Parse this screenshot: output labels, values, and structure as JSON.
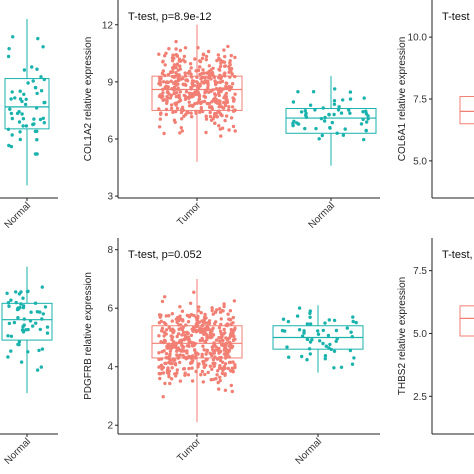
{
  "chart_data": [
    {
      "type": "box",
      "cut": "left",
      "categories": [
        "Tumor",
        "Normal"
      ],
      "tick_labels": [
        "",
        "Normal"
      ],
      "series": [
        {
          "name": "Tumor",
          "median": 6.9,
          "q1": 6.2,
          "q3": 7.8,
          "whisker_low": 4.4,
          "whisker_high": 9.7,
          "color": "#f27f74"
        },
        {
          "name": "Normal",
          "median": 6.9,
          "q1": 6.2,
          "q3": 7.8,
          "whisker_low": 4.4,
          "whisker_high": 9.7,
          "color": "#19b2ad"
        }
      ],
      "ylim": [
        4.0,
        10.3
      ]
    },
    {
      "type": "box",
      "title": "T-test, p=8.9e-12",
      "ylabel": "COL1A2 relative expression",
      "categories": [
        "Tumor",
        "Normal"
      ],
      "tick_labels": [
        "Tumor",
        "Normal"
      ],
      "yticks": [
        3,
        6,
        9,
        12
      ],
      "ylim": [
        2.9,
        13.3
      ],
      "series": [
        {
          "name": "Tumor",
          "median": 8.6,
          "q1": 7.5,
          "q3": 9.3,
          "whisker_low": 4.8,
          "whisker_high": 12.0,
          "color": "#f27f74"
        },
        {
          "name": "Normal",
          "median": 7.1,
          "q1": 6.3,
          "q3": 7.6,
          "whisker_low": 4.6,
          "whisker_high": 9.3,
          "color": "#19b2ad"
        }
      ]
    },
    {
      "type": "box",
      "cut": "right",
      "title": "T-test",
      "ylabel": "COL6A1 relative expression",
      "categories": [
        "Tumor"
      ],
      "tick_labels": [],
      "yticks": [
        5.0,
        7.5,
        10.0
      ],
      "ylim": [
        3.5,
        11.5
      ],
      "series": [
        {
          "name": "Tumor",
          "median": 7.0,
          "q1": 6.5,
          "q3": 7.6,
          "whisker_low": 4.0,
          "whisker_high": 10.0,
          "color": "#f27f74"
        }
      ]
    },
    {
      "type": "box",
      "cut": "left",
      "categories": [
        "Tumor",
        "Normal"
      ],
      "tick_labels": [
        "",
        "Normal"
      ],
      "series": [
        {
          "name": "Tumor",
          "median": 4.8,
          "q1": 4.3,
          "q3": 5.2,
          "whisker_low": 3.0,
          "whisker_high": 6.1,
          "color": "#f27f74"
        },
        {
          "name": "Normal",
          "median": 4.8,
          "q1": 4.3,
          "q3": 5.2,
          "whisker_low": 3.0,
          "whisker_high": 6.1,
          "color": "#19b2ad"
        }
      ],
      "ylim": [
        2.0,
        6.8
      ]
    },
    {
      "type": "box",
      "title": "T-test, p=0.052",
      "ylabel": "PDGFRB relative expression",
      "categories": [
        "Tumor",
        "Normal"
      ],
      "tick_labels": [
        "Tumor",
        "Normal"
      ],
      "yticks": [
        2,
        4,
        6,
        8
      ],
      "ylim": [
        1.7,
        8.4
      ],
      "series": [
        {
          "name": "Tumor",
          "median": 4.8,
          "q1": 4.3,
          "q3": 5.4,
          "whisker_low": 2.1,
          "whisker_high": 7.0,
          "color": "#f27f74"
        },
        {
          "name": "Normal",
          "median": 5.0,
          "q1": 4.6,
          "q3": 5.4,
          "whisker_low": 3.8,
          "whisker_high": 6.1,
          "color": "#19b2ad"
        }
      ]
    },
    {
      "type": "box",
      "cut": "right",
      "title": "T-test,",
      "ylabel": "THBS2 relative expression",
      "categories": [
        "Tumor"
      ],
      "tick_labels": [],
      "yticks": [
        2.5,
        5.0,
        7.5
      ],
      "ylim": [
        1.0,
        8.8
      ],
      "series": [
        {
          "name": "Tumor",
          "median": 5.6,
          "q1": 4.9,
          "q3": 6.1,
          "whisker_low": 2.0,
          "whisker_high": 8.5,
          "color": "#f27f74"
        }
      ]
    }
  ]
}
